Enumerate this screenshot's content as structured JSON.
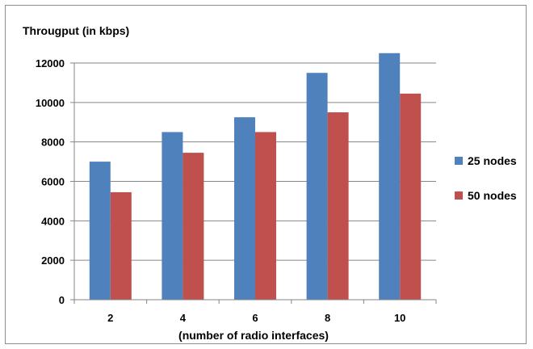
{
  "chart_data": {
    "type": "bar",
    "title": "",
    "ylabel": "Througput (in kbps)",
    "xlabel": "(number of radio interfaces)",
    "categories": [
      "2",
      "4",
      "6",
      "8",
      "10"
    ],
    "series": [
      {
        "name": "25 nodes",
        "color": "#4f81bd",
        "values": [
          7000,
          8500,
          9250,
          11500,
          12500
        ]
      },
      {
        "name": "50 nodes",
        "color": "#c0504d",
        "values": [
          5450,
          7450,
          8500,
          9500,
          10450
        ]
      }
    ],
    "ylim": [
      0,
      12000
    ],
    "yticks": [
      0,
      2000,
      4000,
      6000,
      8000,
      10000,
      12000
    ],
    "grid": true,
    "legend_position": "right"
  }
}
